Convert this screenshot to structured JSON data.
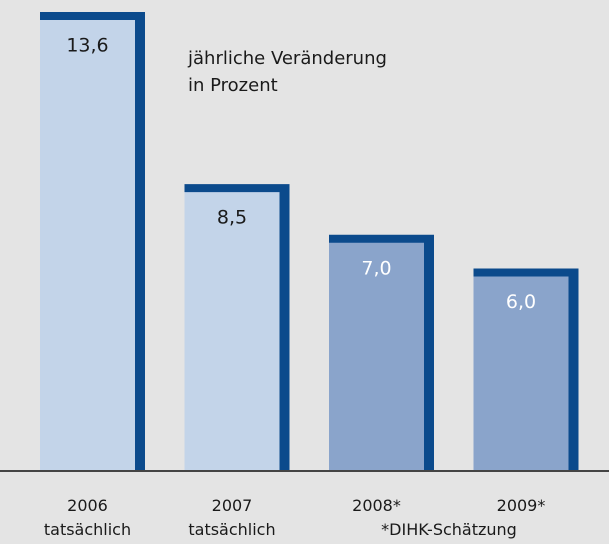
{
  "chart_data": {
    "type": "bar",
    "annotation": "jährliche Veränderung\nin Prozent",
    "footnote": "*DIHK-Schätzung",
    "categories": [
      "2006\ntatsächlich",
      "2007\ntatsächlich",
      "2008*",
      "2009*"
    ],
    "values": [
      13.6,
      8.5,
      7.0,
      6.0
    ],
    "value_labels": [
      "13,6",
      "8,5",
      "7,0",
      "6,0"
    ],
    "colors": [
      "#c3d4e9",
      "#c3d4e9",
      "#8aa4cb",
      "#8aa4cb"
    ],
    "label_colors": [
      "#1a1a1a",
      "#1a1a1a",
      "#ffffff",
      "#ffffff"
    ],
    "shadow_color": "#0b4a8c"
  }
}
